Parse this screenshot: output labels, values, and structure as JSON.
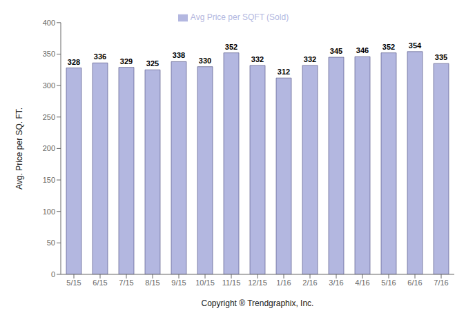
{
  "chart_data": {
    "type": "bar",
    "categories": [
      "5/15",
      "6/15",
      "7/15",
      "8/15",
      "9/15",
      "10/15",
      "11/15",
      "12/15",
      "1/16",
      "2/16",
      "3/16",
      "4/16",
      "5/16",
      "6/16",
      "7/16"
    ],
    "series": [
      {
        "name": "Avg Price per SQFT (Sold)",
        "color": "#b3b7e0",
        "values": [
          328,
          336,
          329,
          325,
          338,
          330,
          352,
          332,
          312,
          332,
          345,
          346,
          352,
          354,
          335
        ]
      }
    ],
    "ylabel": "Avg. Price per SQ. FT.",
    "xlabel": "Copyright ® Trendgraphix, Inc.",
    "ylim": [
      0,
      400
    ],
    "yticks": [
      0,
      50,
      100,
      150,
      200,
      250,
      300,
      350,
      400
    ],
    "grid": false,
    "legend": "top",
    "data_labels": true
  }
}
